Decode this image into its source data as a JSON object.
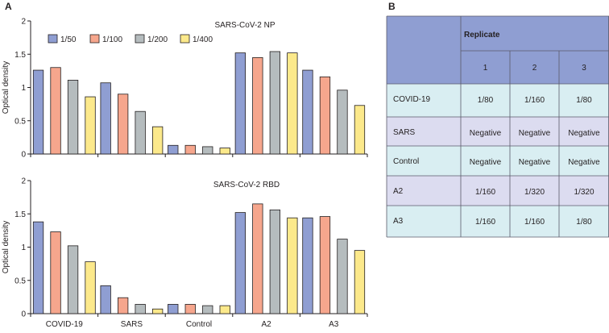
{
  "panel_a_label": "A",
  "panel_b_label": "B",
  "legend": [
    "1/50",
    "1/100",
    "1/200",
    "1/400"
  ],
  "colors": {
    "series": [
      "#8f9ed2",
      "#f6a68d",
      "#b5bcbe",
      "#fce98b"
    ],
    "axis": "#231f20",
    "table_header": "#8f9ed2",
    "table_row_light": "#d9eef2",
    "table_row_dark": "#dcdcf0",
    "table_border": "#5a5a6a"
  },
  "chart_data": [
    {
      "type": "bar",
      "title": "SARS-CoV-2 NP",
      "xlabel": "",
      "ylabel": "Optical density",
      "ylim": [
        0,
        2
      ],
      "yticks": [
        "0",
        "0.5",
        "1",
        "1.5",
        "2"
      ],
      "categories": [
        "COVID-19",
        "SARS",
        "Control",
        "A2",
        "A3"
      ],
      "series": [
        {
          "name": "1/50",
          "values": [
            1.26,
            1.07,
            0.13,
            1.52,
            1.26
          ]
        },
        {
          "name": "1/100",
          "values": [
            1.3,
            0.9,
            0.13,
            1.45,
            1.16
          ]
        },
        {
          "name": "1/200",
          "values": [
            1.11,
            0.64,
            0.11,
            1.54,
            0.96
          ]
        },
        {
          "name": "1/400",
          "values": [
            0.86,
            0.41,
            0.09,
            1.52,
            0.73
          ]
        }
      ]
    },
    {
      "type": "bar",
      "title": "SARS-CoV-2 RBD",
      "xlabel": "",
      "ylabel": "Optical density",
      "ylim": [
        0,
        2
      ],
      "yticks": [
        "0",
        "0.5",
        "1",
        "1.5",
        "2"
      ],
      "categories": [
        "COVID-19",
        "SARS",
        "Control",
        "A2",
        "A3"
      ],
      "series": [
        {
          "name": "1/50",
          "values": [
            1.38,
            0.42,
            0.14,
            1.52,
            1.44
          ]
        },
        {
          "name": "1/100",
          "values": [
            1.23,
            0.24,
            0.14,
            1.65,
            1.46
          ]
        },
        {
          "name": "1/200",
          "values": [
            1.02,
            0.14,
            0.12,
            1.56,
            1.12
          ]
        },
        {
          "name": "1/400",
          "values": [
            0.78,
            0.07,
            0.12,
            1.44,
            0.95
          ]
        }
      ]
    }
  ],
  "table": {
    "header": "Replicate",
    "columns": [
      "1",
      "2",
      "3"
    ],
    "rows": [
      {
        "label": "COVID-19",
        "values": [
          "1/80",
          "1/160",
          "1/80"
        ]
      },
      {
        "label": "SARS",
        "values": [
          "Negative",
          "Negative",
          "Negative"
        ]
      },
      {
        "label": "Control",
        "values": [
          "Negative",
          "Negative",
          "Negative"
        ]
      },
      {
        "label": "A2",
        "values": [
          "1/160",
          "1/320",
          "1/320"
        ]
      },
      {
        "label": "A3",
        "values": [
          "1/160",
          "1/160",
          "1/80"
        ]
      }
    ]
  }
}
